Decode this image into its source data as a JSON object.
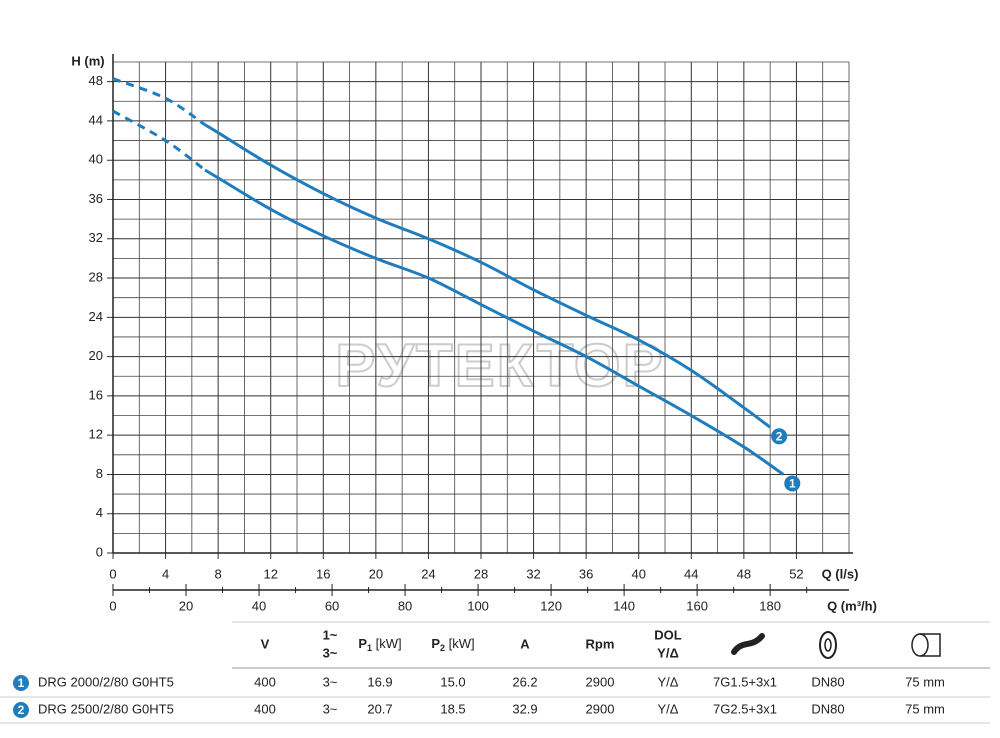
{
  "chart_data": {
    "type": "line",
    "y_label": "H (m)",
    "x_label": "Q (l/s)",
    "x2_label": "Q (m³/h)",
    "watermark": "РУТЕКТОР",
    "xlim": [
      0,
      56
    ],
    "ylim": [
      0,
      50
    ],
    "xticks": [
      0,
      4,
      8,
      12,
      16,
      20,
      24,
      28,
      32,
      36,
      40,
      44,
      48,
      52
    ],
    "yticks": [
      0,
      4,
      8,
      12,
      16,
      20,
      24,
      28,
      32,
      36,
      40,
      44,
      48
    ],
    "xminor": [
      2,
      6,
      10,
      14,
      18,
      22,
      26,
      30,
      34,
      38,
      42,
      46,
      50,
      54,
      56
    ],
    "yminor": [
      2,
      6,
      10,
      14,
      18,
      22,
      26,
      30,
      34,
      38,
      42,
      46,
      50
    ],
    "x2lim": [
      0,
      201.6
    ],
    "x2ticks": [
      0,
      20,
      40,
      60,
      80,
      100,
      120,
      140,
      160,
      180
    ],
    "x2minor": [
      10,
      30,
      50,
      70,
      90,
      110,
      130,
      150,
      170,
      190
    ],
    "grid": true,
    "series": [
      {
        "name": "1",
        "color": "#1f7dbd",
        "extrapolated_x": [
          0,
          4,
          7
        ],
        "extrapolated_values": [
          45,
          42,
          39
        ],
        "x": [
          7,
          8,
          12,
          16,
          20,
          24,
          28,
          32,
          36,
          40,
          44,
          48,
          51
        ],
        "values": [
          39,
          38.2,
          35,
          32.3,
          30,
          28,
          25.3,
          22.6,
          20,
          17,
          14,
          10.8,
          8
        ]
      },
      {
        "name": "2",
        "color": "#1f7dbd",
        "extrapolated_x": [
          0,
          4,
          7
        ],
        "extrapolated_values": [
          48.3,
          46.3,
          43.6
        ],
        "x": [
          7,
          8,
          12,
          16,
          20,
          24,
          28,
          32,
          36,
          40,
          44,
          48,
          50
        ],
        "values": [
          43.6,
          42.8,
          39.5,
          36.6,
          34.1,
          32,
          29.6,
          26.8,
          24.2,
          21.7,
          18.6,
          14.8,
          12.8
        ]
      }
    ]
  },
  "table": {
    "header": [
      {
        "text": "V"
      },
      {
        "lines": [
          "1~",
          "3~"
        ]
      },
      {
        "symbol": "P",
        "sub": "1",
        "unit": " [kW]"
      },
      {
        "symbol": "P",
        "sub": "2",
        "unit": " [kW]"
      },
      {
        "text": "A"
      },
      {
        "text": "Rpm"
      },
      {
        "lines": [
          "DOL",
          "Y/Δ"
        ]
      }
    ],
    "rows": [
      {
        "id": "1",
        "model": "DRG 2000/2/80 G0HT5",
        "cells": [
          "400",
          "3~",
          "16.9",
          "15.0",
          "26.2",
          "2900",
          "Y/Δ",
          "7G1.5+3x1",
          "DN80",
          "75 mm"
        ]
      },
      {
        "id": "2",
        "model": "DRG 2500/2/80 G0HT5",
        "cells": [
          "400",
          "3~",
          "20.7",
          "18.5",
          "32.9",
          "2900",
          "Y/Δ",
          "7G2.5+3x1",
          "DN80",
          "75 mm"
        ]
      }
    ]
  }
}
